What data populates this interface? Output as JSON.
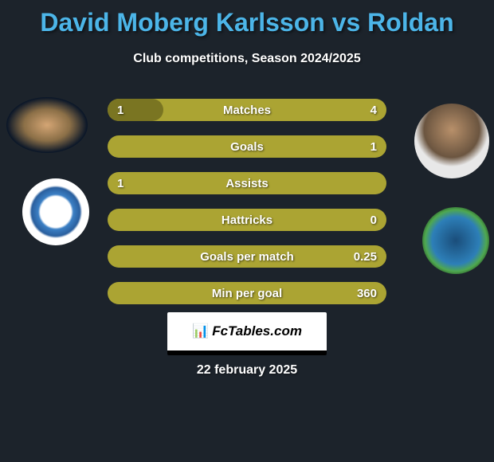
{
  "title": "David Moberg Karlsson vs Roldan",
  "subtitle": "Club competitions, Season 2024/2025",
  "player1": {
    "name": "David Moberg Karlsson",
    "club": "IFK Norrköping"
  },
  "player2": {
    "name": "Roldan",
    "club": "Seattle Sounders FC"
  },
  "colors": {
    "background": "#1c232b",
    "title": "#4cb5e8",
    "text": "#ffffff",
    "bar_bg": "#aba433",
    "bar_fill": "#7a7522"
  },
  "stats": [
    {
      "label": "Matches",
      "left_value": "1",
      "right_value": "4",
      "left_fill_pct": 20,
      "right_fill_pct": 0
    },
    {
      "label": "Goals",
      "left_value": "",
      "right_value": "1",
      "left_fill_pct": 0,
      "right_fill_pct": 0
    },
    {
      "label": "Assists",
      "left_value": "1",
      "right_value": "",
      "left_fill_pct": 0,
      "right_fill_pct": 0
    },
    {
      "label": "Hattricks",
      "left_value": "",
      "right_value": "0",
      "left_fill_pct": 0,
      "right_fill_pct": 0
    },
    {
      "label": "Goals per match",
      "left_value": "",
      "right_value": "0.25",
      "left_fill_pct": 0,
      "right_fill_pct": 0
    },
    {
      "label": "Min per goal",
      "left_value": "",
      "right_value": "360",
      "left_fill_pct": 0,
      "right_fill_pct": 0
    }
  ],
  "footer": {
    "brand": "FcTables.com",
    "date": "22 february 2025"
  }
}
